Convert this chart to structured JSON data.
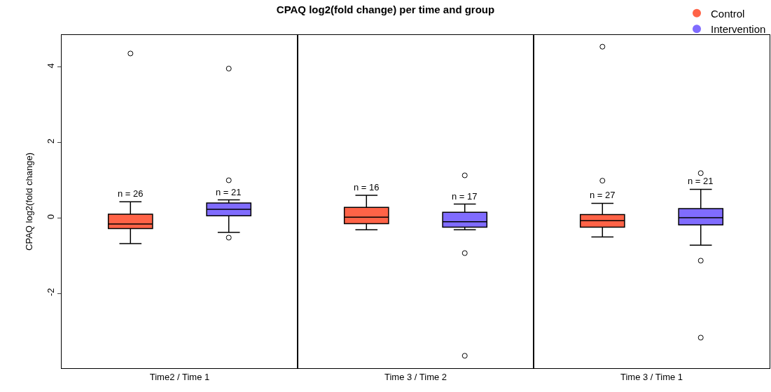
{
  "chart_data": {
    "type": "box",
    "title": "CPAQ log2(fold change) per time and group",
    "ylabel": "CPAQ log2(fold change)",
    "categories": [
      "Time2 / Time 1",
      "Time 3 / Time 2",
      "Time 3 / Time 1"
    ],
    "series": [
      {
        "name": "Control",
        "color": "#ff6347",
        "boxes": [
          {
            "low": -0.68,
            "q1": -0.28,
            "median": -0.16,
            "q3": 0.1,
            "high": 0.43,
            "outliers": [
              4.36
            ]
          },
          {
            "low": -0.31,
            "q1": -0.15,
            "median": 0.02,
            "q3": 0.28,
            "high": 0.6
          },
          {
            "low": -0.5,
            "q1": -0.24,
            "median": -0.07,
            "q3": 0.09,
            "high": 0.39,
            "outliers": [
              4.54,
              0.99
            ]
          }
        ]
      },
      {
        "name": "Intervention",
        "color": "#806cff",
        "boxes": [
          {
            "low": -0.38,
            "q1": 0.06,
            "median": 0.23,
            "q3": 0.4,
            "high": 0.48,
            "outliers": [
              3.96,
              1.0,
              -0.52
            ]
          },
          {
            "low": -0.31,
            "q1": -0.24,
            "median": -0.1,
            "q3": 0.15,
            "high": 0.37,
            "outliers": [
              1.13,
              -0.93,
              -3.65
            ]
          },
          {
            "low": -0.72,
            "q1": -0.18,
            "median": 0.01,
            "q3": 0.25,
            "high": 0.76,
            "outliers": [
              1.19,
              -1.13,
              -3.17
            ]
          }
        ]
      }
    ],
    "annotations": [
      "n = 26",
      "n = 21",
      "n = 16",
      "n = 17",
      "n = 27",
      "n = 21"
    ],
    "ylim": [
      -3.98,
      4.85
    ],
    "yticks": [
      -2,
      0,
      2,
      4
    ],
    "grid": false,
    "legend": "top right"
  }
}
